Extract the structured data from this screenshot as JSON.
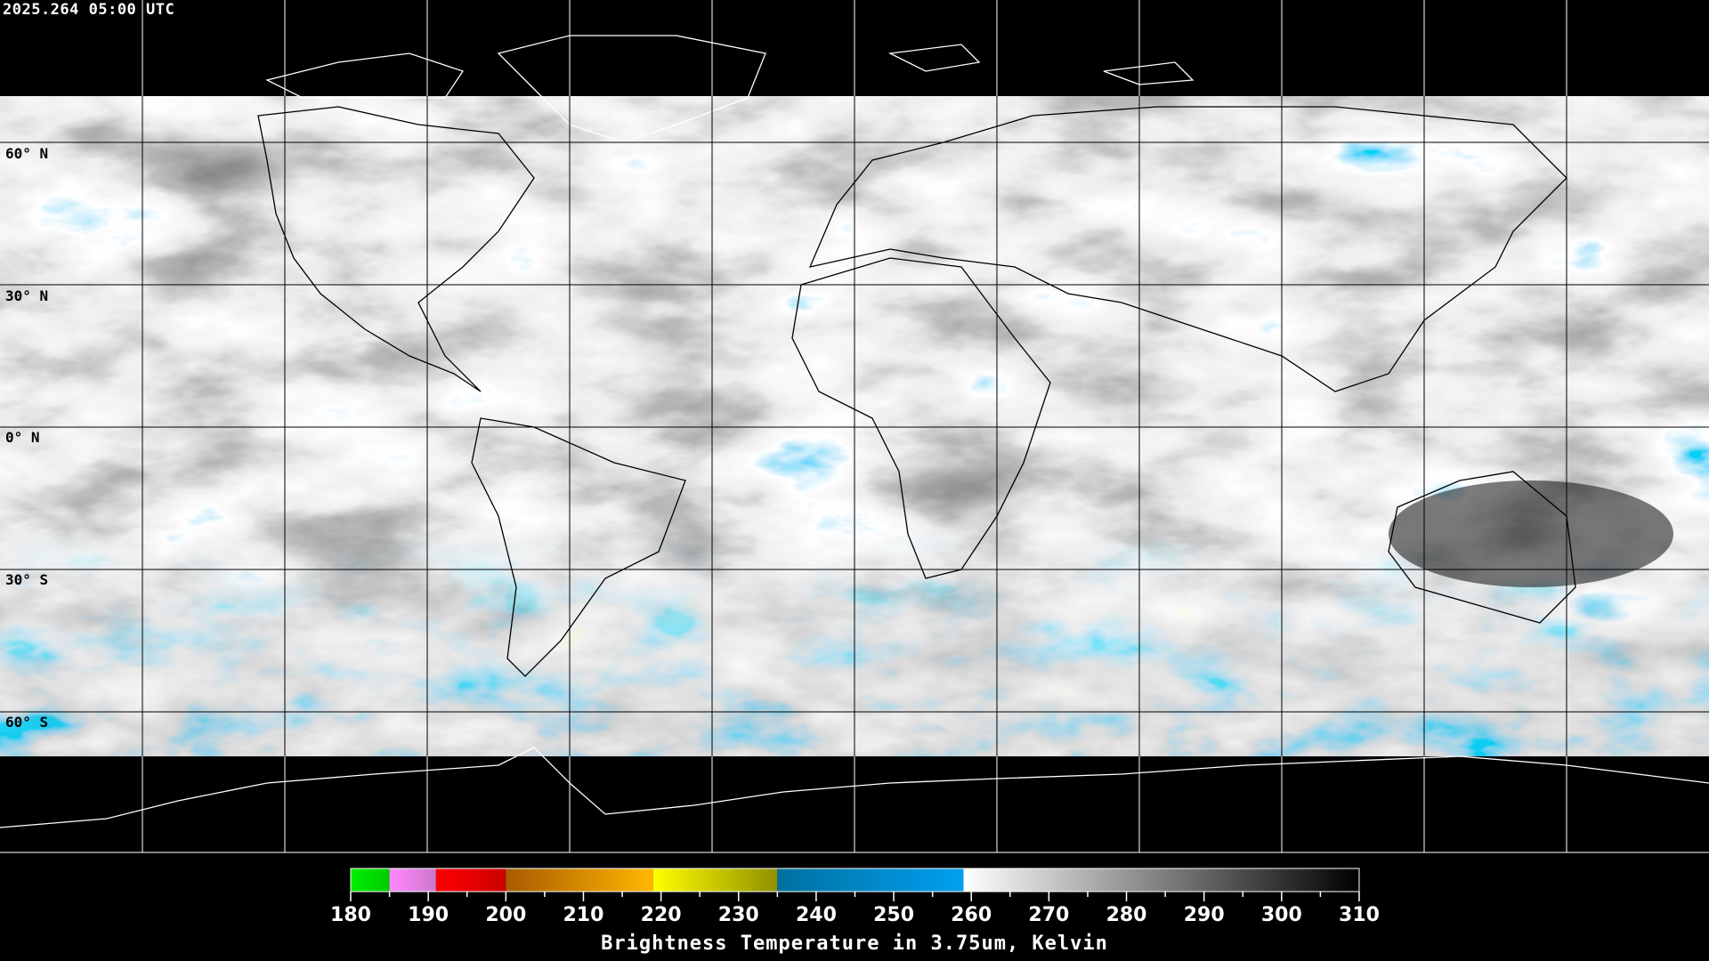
{
  "title": "2025.264 05:00 UTC",
  "lat_labels": [
    "60° N",
    "30° N",
    "0° N",
    "30° S",
    "60° S"
  ],
  "grid": {
    "lon_step_deg": 30,
    "lat_step_deg": 30
  },
  "colorbar": {
    "title": "Brightness Temperature in 3.75um, Kelvin",
    "range": [
      180,
      310
    ],
    "tick_labels": [
      "180",
      "190",
      "200",
      "210",
      "220",
      "230",
      "240",
      "250",
      "260",
      "270",
      "280",
      "290",
      "300",
      "310"
    ],
    "segments": [
      {
        "from": 180,
        "to": 185,
        "colors": [
          "#00ee00",
          "#00cc00"
        ]
      },
      {
        "from": 185,
        "to": 191,
        "colors": [
          "#ff88ff",
          "#cc77cc"
        ]
      },
      {
        "from": 191,
        "to": 200,
        "colors": [
          "#ff0000",
          "#cc0000"
        ]
      },
      {
        "from": 200,
        "to": 219,
        "colors": [
          "#a85a00",
          "#ffb800"
        ]
      },
      {
        "from": 219,
        "to": 235,
        "colors": [
          "#ffff00",
          "#909000"
        ]
      },
      {
        "from": 235,
        "to": 259,
        "colors": [
          "#0070a0",
          "#00a0f0"
        ]
      },
      {
        "from": 259,
        "to": 310,
        "colors": [
          "#ffffff",
          "#000000"
        ]
      }
    ]
  }
}
